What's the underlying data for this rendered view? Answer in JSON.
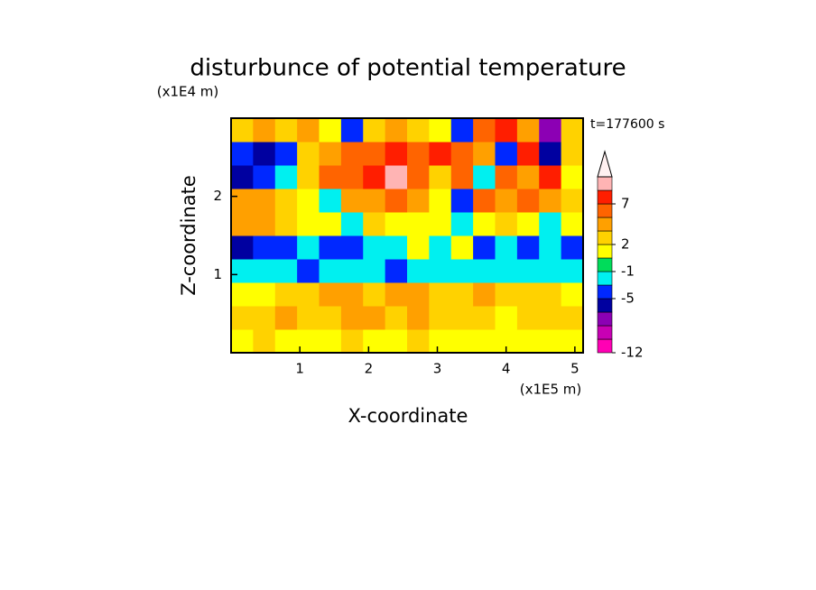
{
  "chart_data": {
    "type": "contour",
    "title": "disturbunce of potential temperature",
    "x_label": "X-coordinate",
    "y_label": "Z-coordinate",
    "x_unit": "(x1E5 m)",
    "y_unit": "(x1E4 m)",
    "annotation": "t=177600 s",
    "xlim": [
      0,
      5.12
    ],
    "ylim": [
      0,
      3
    ],
    "xticks": [
      1,
      2,
      3,
      4,
      5
    ],
    "yticks": [
      1,
      2
    ],
    "levels": [
      -12,
      -10,
      -8,
      -6,
      -5,
      -3,
      -1,
      0,
      2,
      3,
      5,
      7,
      9,
      11
    ],
    "level_ticks": [
      -12,
      -5,
      -1,
      2,
      7
    ],
    "colors": [
      "#ff00b4",
      "#c800b4",
      "#8c00b4",
      "#0000a0",
      "#0028ff",
      "#00f0f0",
      "#00dc5a",
      "#ffff00",
      "#ffd200",
      "#ffa000",
      "#ff6400",
      "#ff1e00",
      "#ffb4b4"
    ],
    "over_color": "#fff0f0",
    "z": [
      [
        1,
        2,
        1,
        1,
        1,
        2,
        1,
        1,
        2,
        1,
        1,
        0.5,
        1,
        0.5,
        1,
        1
      ],
      [
        2,
        2,
        3,
        2,
        2,
        3,
        3,
        2,
        3,
        2,
        2,
        2,
        1,
        2,
        2,
        2
      ],
      [
        1,
        1,
        2,
        2,
        3,
        3,
        2,
        3,
        3,
        2,
        2,
        3,
        2,
        2,
        2,
        1
      ],
      [
        -2,
        -2,
        -2,
        -4,
        -2,
        -2,
        -2,
        -4,
        -2,
        -2,
        -2,
        -2,
        -2,
        -2,
        -2,
        -2
      ],
      [
        -5.5,
        -4,
        -4,
        -2,
        -4,
        -4,
        -2,
        -2,
        0,
        -2,
        1,
        -4,
        -2,
        -4,
        -2,
        -4
      ],
      [
        3,
        4,
        2,
        1,
        0,
        -2,
        2,
        1,
        1,
        0.5,
        -2,
        1,
        2,
        0.5,
        -2,
        0.5
      ],
      [
        4,
        3,
        2,
        0.5,
        -2,
        4,
        4,
        6,
        4,
        0.5,
        -4,
        6,
        4,
        6,
        4,
        2
      ],
      [
        -5.5,
        -4,
        -2,
        2,
        5,
        6,
        8,
        10,
        6,
        2,
        6,
        -2,
        6,
        4,
        8,
        1
      ],
      [
        -4,
        -5.5,
        -4,
        2,
        4,
        6,
        6,
        8,
        6,
        8,
        6,
        4,
        -4,
        8,
        -5.5,
        2
      ],
      [
        2,
        3,
        2,
        4,
        1,
        -4,
        2,
        4,
        2,
        1,
        -4,
        6,
        8,
        4,
        -7,
        2
      ]
    ]
  }
}
